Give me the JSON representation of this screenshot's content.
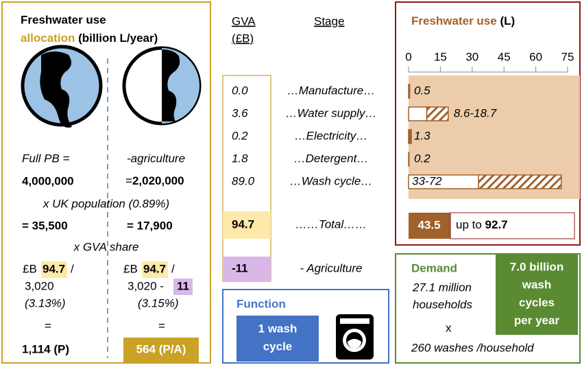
{
  "allocation": {
    "title": "Freshwater use",
    "title_highlight": "allocation",
    "title_unit": "(billion L/year)",
    "full": {
      "label": "Full PB =",
      "value": "4,000,000",
      "per_uk": "= 35,500",
      "gva_prefix": "£B",
      "gva": "94.7",
      "slash": "/",
      "denominator": "3,020",
      "share": "(3.13%)",
      "equals": "=",
      "result": "1,114 (P)"
    },
    "no_agriculture": {
      "label": "-agriculture",
      "eq": "=",
      "value": "2,020,000",
      "per_uk": "= 17,900",
      "gva_prefix": "£B",
      "gva": "94.7",
      "slash": "/",
      "denominator": "3,020 -",
      "minus": "11",
      "share": "(3.15%)",
      "equals": "=",
      "result": "564 (P/A)"
    },
    "uk_population": "x UK population (0.89%)",
    "gva_share": "x GVA share"
  },
  "stages": {
    "gva_header": "GVA",
    "gva_unit": "(£B)",
    "stage_header": "Stage",
    "rows": [
      {
        "gva": "0.0",
        "stage": "…Manufacture…"
      },
      {
        "gva": "3.6",
        "stage": "…Water supply…"
      },
      {
        "gva": "0.2",
        "stage": "…Electricity…"
      },
      {
        "gva": "1.8",
        "stage": "…Detergent…"
      },
      {
        "gva": "89.0",
        "stage": "…Wash cycle…"
      }
    ],
    "total": {
      "gva": "94.7",
      "stage": "……Total……"
    },
    "agriculture": {
      "gva": "-11",
      "stage": "- Agriculture"
    }
  },
  "function": {
    "title": "Function",
    "unit_lines": [
      "1 wash",
      "cycle"
    ]
  },
  "freshwater": {
    "title": "Freshwater use",
    "unit": "(L)",
    "xlim": [
      0,
      75
    ],
    "xticks": [
      0,
      15,
      30,
      45,
      60,
      75
    ],
    "bars": [
      {
        "value": 0.5
      },
      {
        "low": 8.6,
        "high": 18.7,
        "label": "8.6-18.7"
      },
      {
        "value": 1.3
      },
      {
        "value": 0.2
      },
      {
        "low": 33,
        "high": 72,
        "label": "33-72"
      }
    ],
    "total": 43.5,
    "total_prefix": "up to",
    "total_max": 92.7
  },
  "demand": {
    "title": "Demand",
    "households": [
      "27.1 million",
      "households"
    ],
    "times": "x",
    "per_household": "260 washes /household",
    "result": [
      "7.0 billion",
      "wash",
      "cycles",
      "per year"
    ]
  }
}
